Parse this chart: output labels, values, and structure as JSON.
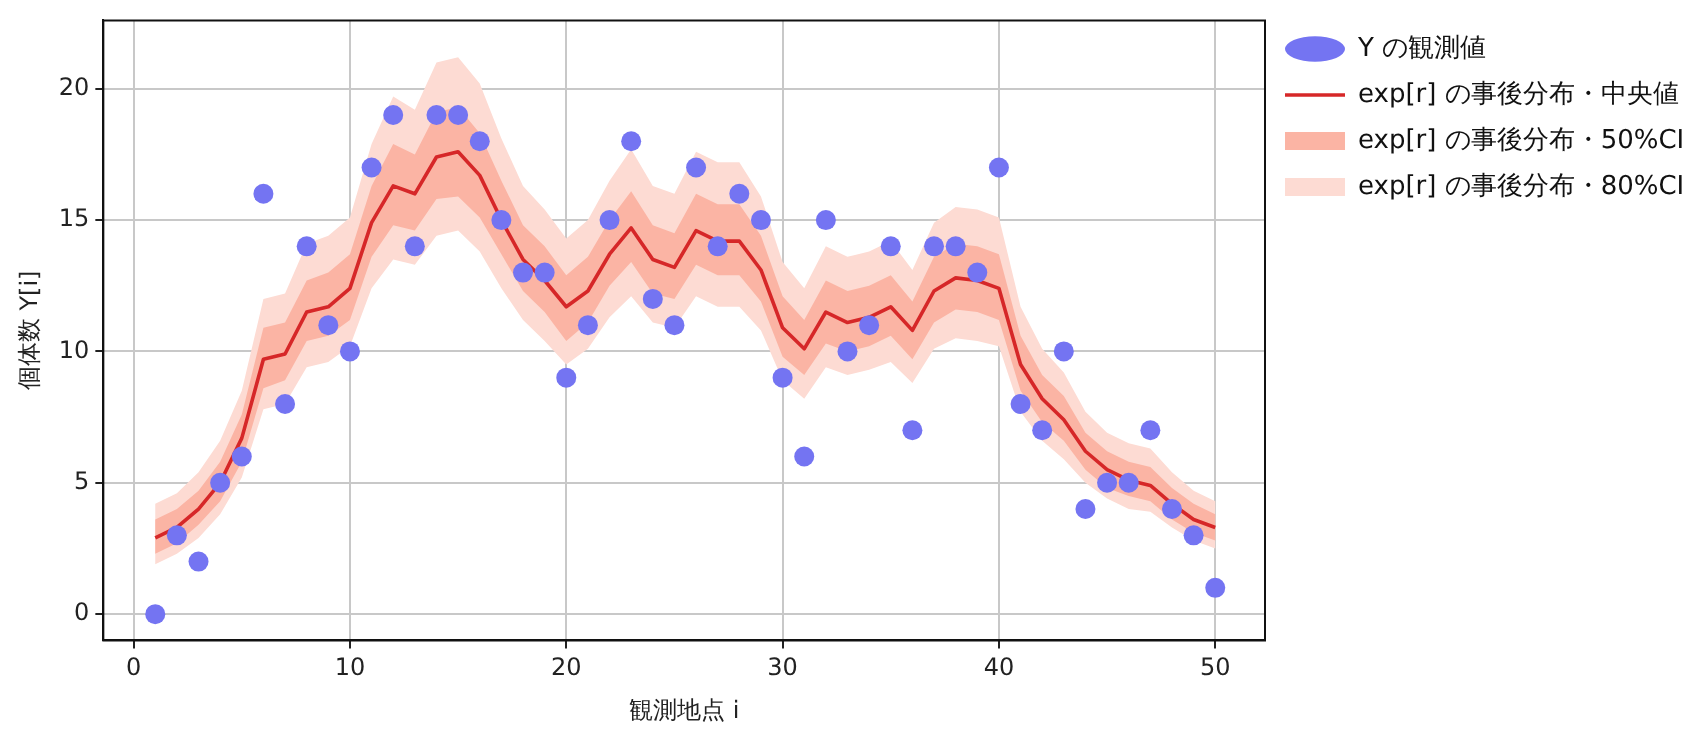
{
  "chart_data": {
    "type": "line",
    "xlabel": "観測地点 i",
    "ylabel": "個体数 Y[i]",
    "x": [
      1,
      2,
      3,
      4,
      5,
      6,
      7,
      8,
      9,
      10,
      11,
      12,
      13,
      14,
      15,
      16,
      17,
      18,
      19,
      20,
      21,
      22,
      23,
      24,
      25,
      26,
      27,
      28,
      29,
      30,
      31,
      32,
      33,
      34,
      35,
      36,
      37,
      38,
      39,
      40,
      41,
      42,
      43,
      44,
      45,
      46,
      47,
      48,
      49,
      50
    ],
    "xlim": [
      -1.4,
      52.3
    ],
    "xticks": [
      0,
      10,
      20,
      30,
      40,
      50
    ],
    "ylim": [
      -1,
      22.6
    ],
    "yticks": [
      0,
      5,
      10,
      15,
      20
    ],
    "grid": true,
    "legend": "top right",
    "line_style": "solid",
    "series": [
      {
        "name": "Y の観測値",
        "type": "scatter",
        "marker": "circle",
        "color": "#7474f2",
        "values": [
          0,
          3,
          2,
          5,
          6,
          16,
          8,
          14,
          11,
          10,
          17,
          19,
          14,
          19,
          19,
          18,
          15,
          13,
          13,
          9,
          11,
          15,
          18,
          12,
          11,
          17,
          14,
          16,
          15,
          9,
          6,
          15,
          10,
          11,
          14,
          7,
          14,
          14,
          13,
          17,
          8,
          7,
          10,
          4,
          5,
          5,
          7,
          4,
          3,
          1
        ]
      },
      {
        "name": "exp[r] の事後分布・中央値",
        "color": "#d62728",
        "values": [
          2.9,
          3.3,
          4.0,
          5.0,
          6.7,
          9.7,
          9.9,
          11.5,
          11.7,
          12.4,
          14.9,
          16.3,
          16.0,
          17.4,
          17.6,
          16.7,
          15.0,
          13.5,
          12.7,
          11.7,
          12.3,
          13.7,
          14.7,
          13.5,
          13.2,
          14.6,
          14.2,
          14.2,
          13.1,
          10.9,
          10.1,
          11.5,
          11.1,
          11.3,
          11.7,
          10.8,
          12.3,
          12.8,
          12.7,
          12.4,
          9.5,
          8.2,
          7.4,
          6.2,
          5.5,
          5.1,
          4.9,
          4.2,
          3.6,
          3.3
        ]
      },
      {
        "name": "exp[r] の事後分布・50%CI",
        "type": "area",
        "color": "#fbb4a4",
        "values": [
          null,
          null,
          null,
          null,
          null,
          null,
          null,
          null,
          null,
          null,
          null,
          null,
          null,
          null,
          null,
          null,
          null,
          null,
          null,
          null,
          null,
          null,
          null,
          null,
          null,
          null,
          null,
          null,
          null,
          null,
          null,
          null,
          null,
          null,
          null,
          null,
          null,
          null,
          null,
          null,
          null,
          null,
          null,
          null,
          null,
          null,
          null,
          null,
          null,
          null
        ],
        "lower": [
          2.3,
          2.7,
          3.4,
          4.3,
          5.8,
          8.6,
          8.9,
          10.4,
          10.6,
          11.2,
          13.6,
          14.8,
          14.6,
          15.8,
          15.9,
          15.1,
          13.7,
          12.3,
          11.5,
          10.4,
          11.1,
          12.5,
          13.4,
          12.2,
          12.0,
          13.3,
          12.9,
          12.9,
          11.9,
          9.8,
          9.1,
          10.3,
          10.0,
          10.2,
          10.6,
          9.7,
          11.1,
          11.6,
          11.5,
          11.2,
          8.5,
          7.3,
          6.6,
          5.5,
          4.8,
          4.5,
          4.3,
          3.6,
          3.1,
          2.8
        ],
        "upper": [
          3.6,
          4.0,
          4.7,
          5.8,
          7.6,
          10.9,
          11.1,
          12.7,
          13.0,
          13.7,
          16.3,
          17.9,
          17.5,
          19.1,
          19.3,
          18.3,
          16.5,
          14.8,
          14.0,
          12.9,
          13.6,
          15.0,
          16.1,
          14.8,
          14.5,
          16.0,
          15.6,
          15.6,
          14.4,
          12.1,
          11.2,
          12.7,
          12.3,
          12.5,
          12.9,
          11.9,
          13.6,
          14.1,
          14.0,
          13.7,
          10.6,
          9.1,
          8.3,
          6.9,
          6.2,
          5.8,
          5.6,
          4.8,
          4.2,
          3.8
        ]
      },
      {
        "name": "exp[r] の事後分布・80%CI",
        "type": "area",
        "color": "#fddbd3",
        "values": [
          null,
          null,
          null,
          null,
          null,
          null,
          null,
          null,
          null,
          null,
          null,
          null,
          null,
          null,
          null,
          null,
          null,
          null,
          null,
          null,
          null,
          null,
          null,
          null,
          null,
          null,
          null,
          null,
          null,
          null,
          null,
          null,
          null,
          null,
          null,
          null,
          null,
          null,
          null,
          null,
          null,
          null,
          null,
          null,
          null,
          null,
          null,
          null,
          null,
          null
        ],
        "lower": [
          1.9,
          2.3,
          2.9,
          3.8,
          5.2,
          7.8,
          8.0,
          9.4,
          9.6,
          10.2,
          12.4,
          13.5,
          13.3,
          14.4,
          14.6,
          13.8,
          12.4,
          11.2,
          10.4,
          9.5,
          10.1,
          11.3,
          12.1,
          11.1,
          10.9,
          12.1,
          11.7,
          11.7,
          10.8,
          8.9,
          8.2,
          9.4,
          9.1,
          9.3,
          9.6,
          8.8,
          10.1,
          10.5,
          10.4,
          10.2,
          7.7,
          6.6,
          5.9,
          5.0,
          4.4,
          4.0,
          3.9,
          3.3,
          2.8,
          2.5
        ],
        "upper": [
          4.2,
          4.6,
          5.4,
          6.6,
          8.5,
          12.0,
          12.2,
          14.1,
          14.4,
          15.1,
          17.9,
          19.7,
          19.2,
          21.0,
          21.2,
          20.2,
          18.1,
          16.3,
          15.4,
          14.3,
          15.0,
          16.5,
          17.7,
          16.3,
          16.0,
          17.6,
          17.2,
          17.2,
          15.9,
          13.4,
          12.4,
          14.0,
          13.6,
          13.8,
          14.2,
          13.1,
          14.9,
          15.5,
          15.4,
          15.1,
          11.7,
          10.1,
          9.2,
          7.7,
          6.9,
          6.5,
          6.3,
          5.4,
          4.7,
          4.3
        ]
      }
    ]
  }
}
